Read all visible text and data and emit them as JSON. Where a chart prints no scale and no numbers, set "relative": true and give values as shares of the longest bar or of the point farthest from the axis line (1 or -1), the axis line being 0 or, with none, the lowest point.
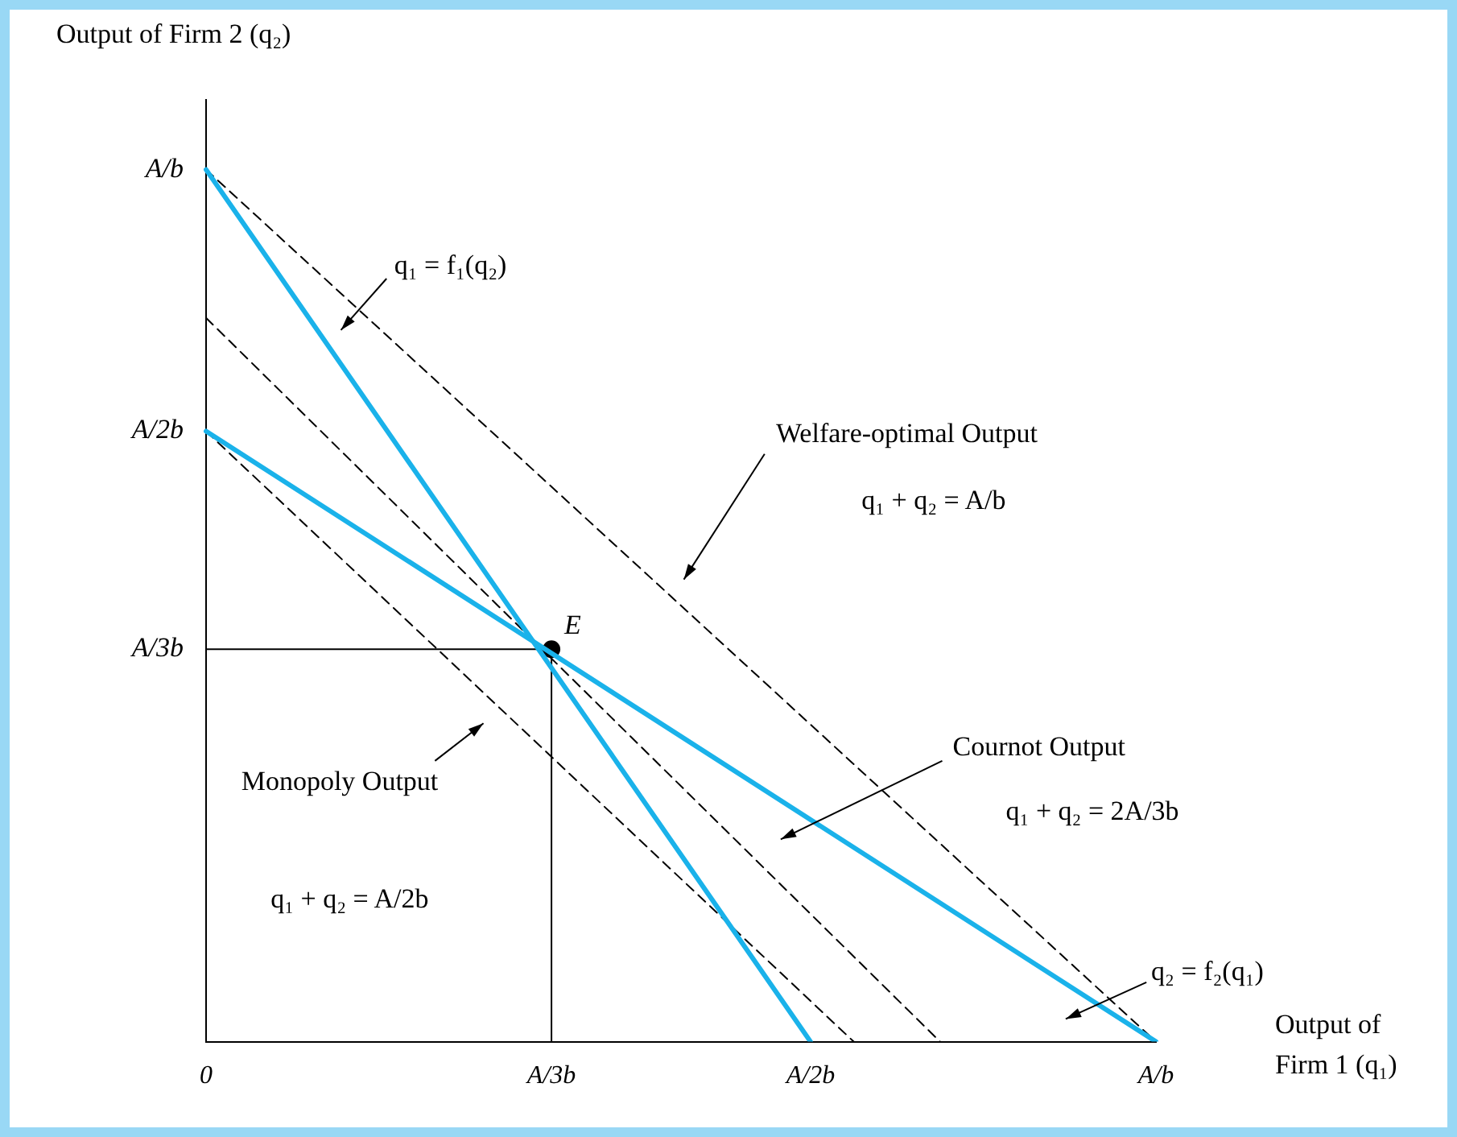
{
  "chart_data": {
    "type": "line",
    "relative": true,
    "xlabel": "Output of Firm 1 (q₁)",
    "ylabel": "Output of Firm 2 (q₂)",
    "categories": [
      "0",
      null,
      null,
      null,
      null,
      null,
      null,
      null,
      "A/3b",
      null,
      null,
      null,
      null,
      null,
      "A/2b",
      null,
      null,
      null,
      null,
      null,
      null,
      null,
      "A/b"
    ],
    "legend": false,
    "marker": "none",
    "line_style": "solid",
    "series": [
      {
        "color": "#1ab2ea",
        "values": [
          1,
          null,
          null,
          null,
          null,
          null,
          null,
          null,
          null,
          null,
          null,
          null,
          null,
          null,
          0,
          null,
          null,
          null,
          null,
          null,
          null,
          null,
          null
        ]
      },
      {
        "color": "#1ab2ea",
        "values": [
          0.7,
          null,
          null,
          null,
          null,
          null,
          null,
          null,
          null,
          null,
          null,
          null,
          null,
          null,
          null,
          null,
          null,
          null,
          null,
          null,
          null,
          null,
          0
        ]
      },
      {
        "color": "#000000",
        "line_style": "dashed",
        "values": [
          1,
          null,
          null,
          null,
          null,
          null,
          null,
          null,
          null,
          null,
          null,
          null,
          null,
          null,
          null,
          null,
          null,
          null,
          null,
          null,
          null,
          null,
          0
        ]
      },
      {
        "color": "#000000",
        "line_style": "dashed",
        "values": [
          0.83,
          null,
          null,
          null,
          null,
          null,
          null,
          null,
          null,
          null,
          null,
          null,
          null,
          null,
          null,
          null,
          null,
          0,
          null,
          null,
          null,
          null,
          null
        ]
      },
      {
        "color": "#000000",
        "line_style": "dashed",
        "values": [
          0.7,
          null,
          null,
          null,
          null,
          null,
          null,
          null,
          null,
          null,
          null,
          null,
          null,
          null,
          null,
          0,
          null,
          null,
          null,
          null,
          null,
          null,
          null
        ]
      },
      {
        "color": "#000000",
        "x": [
          "0",
          "A/3b"
        ],
        "values": [
          0.45,
          0.45
        ]
      },
      {
        "color": "#000000",
        "x": [
          "A/3b",
          "A/3b"
        ],
        "values": [
          0,
          0.45
        ]
      },
      {
        "type": "scatter",
        "color": "#000000",
        "x": [
          "A/3b"
        ],
        "values": [
          0.45
        ],
        "marker": "circle"
      }
    ],
    "annotations": [
      "q₁ = f₁(q₂)",
      "Welfare-optimal Output",
      "q₁ + q₂ = A/b",
      "Cournot Output",
      "q₁ + q₂ = 2A/3b",
      "Monopoly Output",
      "q₁ + q₂ = A/2b",
      "q₂ = f₂(q₁)",
      {
        "text": "E",
        "x": "A/3b",
        "y": 0.45
      },
      {
        "text": "A/3b",
        "x": "0",
        "y": 0.45
      },
      {
        "text": "A/2b",
        "x": "0",
        "y": 0.7
      },
      {
        "text": "A/b",
        "x": "0",
        "y": 1
      }
    ]
  }
}
